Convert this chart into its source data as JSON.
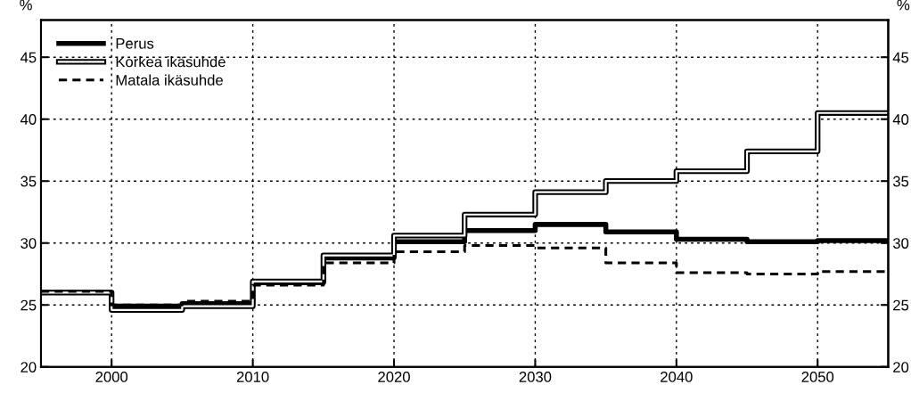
{
  "chart_data": {
    "type": "step",
    "ylabel": "%",
    "y2label": "%",
    "x": [
      1995,
      2000,
      2005,
      2010,
      2015,
      2020,
      2025,
      2030,
      2035,
      2040,
      2045,
      2050,
      2055
    ],
    "series": [
      {
        "name": "Perus",
        "color": "#000000",
        "line_style": "solid",
        "values": [
          26.0,
          24.9,
          25.1,
          26.8,
          28.8,
          30.1,
          31.0,
          31.5,
          30.9,
          30.3,
          30.1,
          30.2,
          30.2
        ]
      },
      {
        "name": "Korkea ikäsuhde",
        "color": "#000000",
        "line_style": "solid",
        "values": [
          26.0,
          24.6,
          24.9,
          26.9,
          29.0,
          30.6,
          32.3,
          34.1,
          35.0,
          35.8,
          37.4,
          40.5,
          40.5
        ]
      },
      {
        "name": "Matala ikäsuhde",
        "color": "#000000",
        "line_style": "dashed",
        "values": [
          26.1,
          25.0,
          25.3,
          26.6,
          28.4,
          29.3,
          29.8,
          29.6,
          28.4,
          27.6,
          27.5,
          27.7,
          27.7
        ]
      }
    ],
    "xlim": [
      1995,
      2055
    ],
    "xticks": [
      2000,
      2010,
      2020,
      2030,
      2040,
      2050
    ],
    "ylim": [
      20,
      48
    ],
    "yticks": [
      20,
      25,
      30,
      35,
      40,
      45
    ],
    "y2lim": [
      20,
      48
    ],
    "y2ticks": [
      20,
      25,
      30,
      35,
      40,
      45
    ],
    "grid": true,
    "legend": "top left",
    "marker": "none"
  }
}
